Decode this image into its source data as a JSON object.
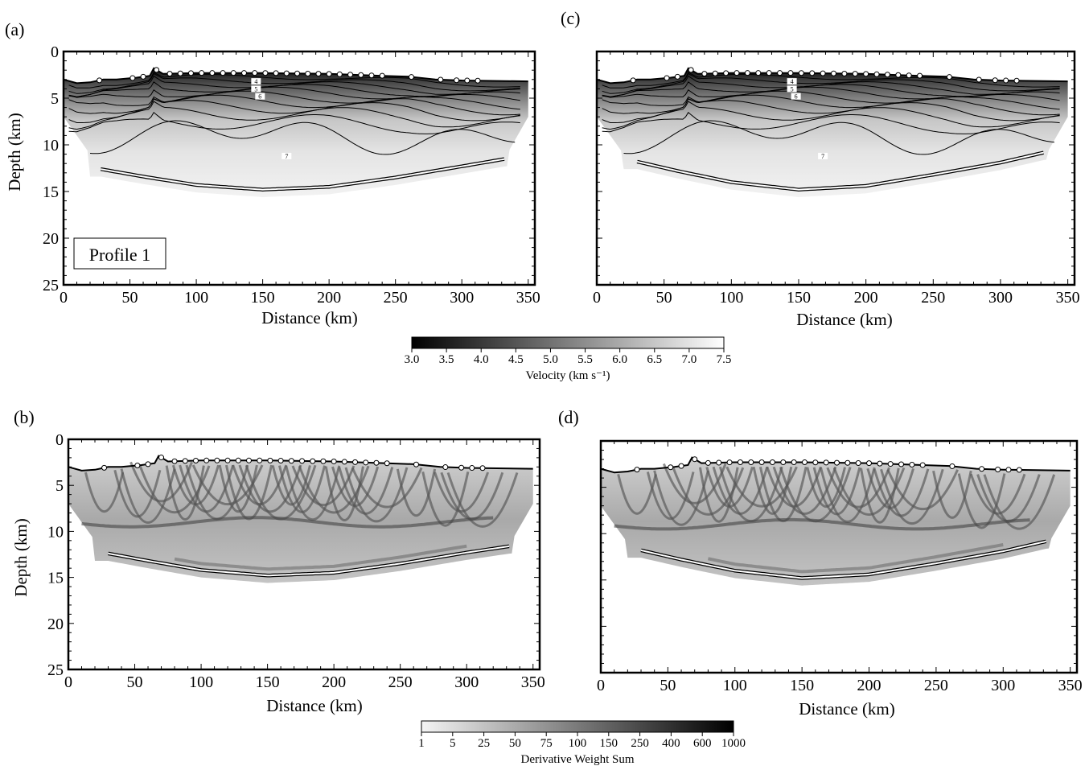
{
  "panels": [
    {
      "id": "a",
      "label": "(a)",
      "kind": "velocity",
      "xlabel": "Distance (km)",
      "ylabel": "Depth (km)",
      "inset_label": "Profile 1",
      "contour_labels": [
        "4",
        "5",
        "6",
        "7"
      ]
    },
    {
      "id": "c",
      "label": "(c)",
      "kind": "velocity",
      "xlabel": "Distance (km)",
      "ylabel": "",
      "inset_label": "",
      "contour_labels": [
        "4",
        "5",
        "6",
        "7"
      ]
    },
    {
      "id": "b",
      "label": "(b)",
      "kind": "dws",
      "xlabel": "Distance (km)",
      "ylabel": "Depth (km)",
      "inset_label": "",
      "contour_labels": []
    },
    {
      "id": "d",
      "label": "(d)",
      "kind": "dws",
      "xlabel": "Distance (km)",
      "ylabel": "",
      "inset_label": "",
      "contour_labels": []
    }
  ],
  "colorbars": {
    "velocity": {
      "label": "Velocity (km s⁻¹)",
      "ticks": [
        "3.0",
        "3.5",
        "4.0",
        "4.5",
        "5.0",
        "5.5",
        "6.0",
        "6.5",
        "7.0",
        "7.5"
      ],
      "direction": "dark-to-light"
    },
    "dws": {
      "label": "Derivative Weight Sum",
      "ticks": [
        "1",
        "5",
        "25",
        "50",
        "75",
        "100",
        "150",
        "250",
        "400",
        "600",
        "1000"
      ],
      "direction": "light-to-dark"
    }
  },
  "chart_data": [
    {
      "type": "heatmap",
      "panel": "a",
      "title": "",
      "xlabel": "Distance (km)",
      "ylabel": "Depth (km)",
      "xlim": [
        0,
        355
      ],
      "ylim": [
        25,
        0
      ],
      "xticks": [
        0,
        50,
        100,
        150,
        200,
        250,
        300,
        350
      ],
      "yticks": [
        0,
        5,
        10,
        15,
        20,
        25
      ],
      "seafloor_depth": [
        [
          0,
          3.0
        ],
        [
          10,
          3.4
        ],
        [
          20,
          3.3
        ],
        [
          30,
          3.0
        ],
        [
          40,
          3.0
        ],
        [
          55,
          2.8
        ],
        [
          65,
          2.6
        ],
        [
          68,
          1.8
        ],
        [
          75,
          2.4
        ],
        [
          100,
          2.3
        ],
        [
          150,
          2.3
        ],
        [
          200,
          2.4
        ],
        [
          240,
          2.6
        ],
        [
          260,
          2.7
        ],
        [
          280,
          3.0
        ],
        [
          300,
          3.1
        ],
        [
          350,
          3.2
        ]
      ],
      "moho_depth": [
        [
          28,
          12.6
        ],
        [
          60,
          13.4
        ],
        [
          100,
          14.3
        ],
        [
          150,
          14.8
        ],
        [
          200,
          14.5
        ],
        [
          250,
          13.5
        ],
        [
          300,
          12.3
        ],
        [
          333,
          11.5
        ]
      ],
      "instrument_positions_km": [
        27,
        52,
        60,
        70,
        80,
        88,
        96,
        104,
        112,
        120,
        128,
        136,
        144,
        152,
        160,
        168,
        176,
        184,
        192,
        200,
        208,
        216,
        224,
        232,
        240,
        262,
        284,
        296,
        304,
        312
      ],
      "velocity_contours_kms": [
        4,
        5,
        6,
        7
      ],
      "colorscale": {
        "min": 3.0,
        "max": 7.5,
        "unit": "km/s"
      }
    },
    {
      "type": "heatmap",
      "panel": "c",
      "title": "",
      "xlabel": "Distance (km)",
      "ylabel": "",
      "xlim": [
        0,
        355
      ],
      "ylim": [
        25,
        0
      ],
      "xticks": [
        0,
        50,
        100,
        150,
        200,
        250,
        300,
        350
      ],
      "yticks": [
        0,
        5,
        10,
        15,
        20,
        25
      ],
      "seafloor_depth": [
        [
          0,
          3.0
        ],
        [
          10,
          3.4
        ],
        [
          20,
          3.3
        ],
        [
          30,
          3.0
        ],
        [
          40,
          3.0
        ],
        [
          55,
          2.8
        ],
        [
          65,
          2.6
        ],
        [
          68,
          1.8
        ],
        [
          75,
          2.4
        ],
        [
          100,
          2.3
        ],
        [
          150,
          2.3
        ],
        [
          200,
          2.4
        ],
        [
          240,
          2.6
        ],
        [
          260,
          2.7
        ],
        [
          280,
          3.0
        ],
        [
          300,
          3.1
        ],
        [
          350,
          3.2
        ]
      ],
      "moho_depth": [
        [
          30,
          11.8
        ],
        [
          60,
          12.8
        ],
        [
          100,
          14.0
        ],
        [
          150,
          14.8
        ],
        [
          200,
          14.4
        ],
        [
          250,
          13.2
        ],
        [
          300,
          11.9
        ],
        [
          333,
          10.8
        ]
      ],
      "instrument_positions_km": [
        27,
        52,
        60,
        70,
        80,
        88,
        96,
        104,
        112,
        120,
        128,
        136,
        144,
        152,
        160,
        168,
        176,
        184,
        192,
        200,
        208,
        216,
        224,
        232,
        240,
        262,
        284,
        296,
        304,
        312
      ],
      "velocity_contours_kms": [
        4,
        5,
        6,
        7
      ],
      "colorscale": {
        "min": 3.0,
        "max": 7.5,
        "unit": "km/s"
      }
    },
    {
      "type": "heatmap",
      "panel": "b",
      "title": "",
      "xlabel": "Distance (km)",
      "ylabel": "Depth (km)",
      "xlim": [
        0,
        355
      ],
      "ylim": [
        25,
        0
      ],
      "xticks": [
        0,
        50,
        100,
        150,
        200,
        250,
        300,
        350
      ],
      "yticks": [
        0,
        5,
        10,
        15,
        20,
        25
      ],
      "seafloor_depth": [
        [
          0,
          3.0
        ],
        [
          10,
          3.4
        ],
        [
          20,
          3.3
        ],
        [
          30,
          3.0
        ],
        [
          40,
          3.0
        ],
        [
          55,
          2.8
        ],
        [
          65,
          2.6
        ],
        [
          68,
          1.8
        ],
        [
          75,
          2.4
        ],
        [
          100,
          2.3
        ],
        [
          150,
          2.3
        ],
        [
          200,
          2.4
        ],
        [
          240,
          2.6
        ],
        [
          260,
          2.7
        ],
        [
          280,
          3.0
        ],
        [
          300,
          3.1
        ],
        [
          350,
          3.2
        ]
      ],
      "moho_depth": [
        [
          30,
          12.4
        ],
        [
          60,
          13.2
        ],
        [
          100,
          14.2
        ],
        [
          150,
          14.8
        ],
        [
          200,
          14.5
        ],
        [
          250,
          13.5
        ],
        [
          300,
          12.3
        ],
        [
          333,
          11.6
        ]
      ],
      "instrument_positions_km": [
        27,
        52,
        60,
        70,
        80,
        88,
        96,
        104,
        112,
        120,
        128,
        136,
        144,
        152,
        160,
        168,
        176,
        184,
        192,
        200,
        208,
        216,
        224,
        232,
        240,
        262,
        284,
        296,
        304,
        312
      ],
      "colorscale": {
        "min": 1,
        "max": 1000,
        "unit": "DWS"
      }
    },
    {
      "type": "heatmap",
      "panel": "d",
      "title": "",
      "xlabel": "Distance (km)",
      "ylabel": "",
      "xlim": [
        0,
        355
      ],
      "ylim": [
        25,
        0
      ],
      "xticks": [
        0,
        50,
        100,
        150,
        200,
        250,
        300,
        350
      ],
      "yticks": [
        0,
        5,
        10,
        15,
        20,
        25
      ],
      "seafloor_depth": [
        [
          0,
          3.0
        ],
        [
          10,
          3.4
        ],
        [
          20,
          3.3
        ],
        [
          30,
          3.0
        ],
        [
          40,
          3.0
        ],
        [
          55,
          2.8
        ],
        [
          65,
          2.6
        ],
        [
          68,
          1.8
        ],
        [
          75,
          2.4
        ],
        [
          100,
          2.3
        ],
        [
          150,
          2.3
        ],
        [
          200,
          2.4
        ],
        [
          240,
          2.6
        ],
        [
          260,
          2.7
        ],
        [
          280,
          3.0
        ],
        [
          300,
          3.1
        ],
        [
          350,
          3.2
        ]
      ],
      "moho_depth": [
        [
          30,
          11.8
        ],
        [
          60,
          12.8
        ],
        [
          100,
          14.0
        ],
        [
          150,
          14.8
        ],
        [
          200,
          14.4
        ],
        [
          250,
          13.2
        ],
        [
          300,
          11.9
        ],
        [
          333,
          10.8
        ]
      ],
      "instrument_positions_km": [
        27,
        52,
        60,
        70,
        80,
        88,
        96,
        104,
        112,
        120,
        128,
        136,
        144,
        152,
        160,
        168,
        176,
        184,
        192,
        200,
        208,
        216,
        224,
        232,
        240,
        262,
        284,
        296,
        304,
        312
      ],
      "colorscale": {
        "min": 1,
        "max": 1000,
        "unit": "DWS"
      }
    }
  ]
}
